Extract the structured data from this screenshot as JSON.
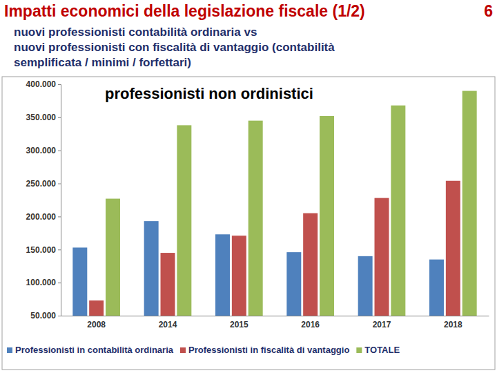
{
  "header": {
    "title": "Impatti economici della legislazione fiscale (1/2)",
    "page": "6",
    "subtitle": [
      "nuovi professionisti contabilità ordinaria vs",
      "nuovi professionisti con fiscalità di vantaggio (contabilità",
      "semplificata / minimi / forfettari)"
    ]
  },
  "chart_data": {
    "type": "bar",
    "title": "professionisti non ordinistici",
    "categories": [
      "2008",
      "2014",
      "2015",
      "2016",
      "2017",
      "2018"
    ],
    "series": [
      {
        "name": "Professionisti in contabilità ordinaria",
        "color": "#4f81bd",
        "values": [
          153000,
          193000,
          173000,
          146000,
          140000,
          135000
        ]
      },
      {
        "name": "Professionisti in fiscalità di vantaggio",
        "color": "#c0504d",
        "values": [
          73000,
          145000,
          171000,
          205000,
          228000,
          254000
        ]
      },
      {
        "name": "TOTALE",
        "color": "#9bbb59",
        "values": [
          227000,
          338000,
          345000,
          352000,
          368000,
          390000
        ]
      }
    ],
    "ylim": [
      50000,
      400000
    ],
    "yticks": [
      {
        "value": 50000,
        "label": "50.000"
      },
      {
        "value": 100000,
        "label": "100.000"
      },
      {
        "value": 150000,
        "label": "150.000"
      },
      {
        "value": 200000,
        "label": "200.000"
      },
      {
        "value": 250000,
        "label": "250.000"
      },
      {
        "value": 300000,
        "label": "300.000"
      },
      {
        "value": 350000,
        "label": "350.000"
      },
      {
        "value": 400000,
        "label": "400.000"
      }
    ],
    "grid": false,
    "legend": "bottom"
  }
}
